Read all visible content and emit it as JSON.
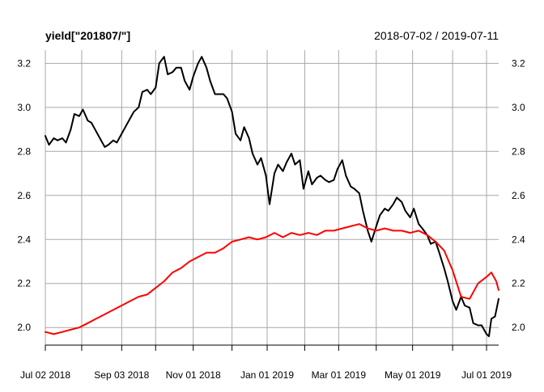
{
  "chart_data": {
    "type": "line",
    "title": "yield[\"201807/\"]",
    "date_range": "2018-07-02 / 2019-07-11",
    "xlim": [
      "2018-07-02",
      "2019-07-11"
    ],
    "ylim": [
      1.92,
      3.26
    ],
    "grid": true,
    "x_ticks": [
      {
        "date": "2018-07-02",
        "label": "Jul 02 2018"
      },
      {
        "date": "2018-08-01",
        "label": ""
      },
      {
        "date": "2018-09-03",
        "label": "Sep 03 2018"
      },
      {
        "date": "2018-10-01",
        "label": ""
      },
      {
        "date": "2018-11-01",
        "label": "Nov 01 2018"
      },
      {
        "date": "2018-12-03",
        "label": ""
      },
      {
        "date": "2019-01-01",
        "label": "Jan 01 2019"
      },
      {
        "date": "2019-02-01",
        "label": ""
      },
      {
        "date": "2019-03-01",
        "label": "Mar 01 2019"
      },
      {
        "date": "2019-04-01",
        "label": ""
      },
      {
        "date": "2019-05-01",
        "label": "May 01 2019"
      },
      {
        "date": "2019-06-03",
        "label": ""
      },
      {
        "date": "2019-07-01",
        "label": "Jul 01 2019"
      }
    ],
    "y_ticks": [
      2.0,
      2.2,
      2.4,
      2.6,
      2.8,
      3.0,
      3.2
    ],
    "y_tick_labels": [
      "2.0",
      "2.2",
      "2.4",
      "2.6",
      "2.8",
      "3.0",
      "3.2"
    ],
    "series": [
      {
        "color": "#000000",
        "points": [
          [
            "2018-07-02",
            2.87
          ],
          [
            "2018-07-05",
            2.83
          ],
          [
            "2018-07-09",
            2.86
          ],
          [
            "2018-07-12",
            2.85
          ],
          [
            "2018-07-16",
            2.86
          ],
          [
            "2018-07-19",
            2.84
          ],
          [
            "2018-07-23",
            2.9
          ],
          [
            "2018-07-26",
            2.97
          ],
          [
            "2018-07-30",
            2.96
          ],
          [
            "2018-08-02",
            2.99
          ],
          [
            "2018-08-06",
            2.94
          ],
          [
            "2018-08-09",
            2.93
          ],
          [
            "2018-08-13",
            2.89
          ],
          [
            "2018-08-16",
            2.86
          ],
          [
            "2018-08-20",
            2.82
          ],
          [
            "2018-08-23",
            2.83
          ],
          [
            "2018-08-27",
            2.85
          ],
          [
            "2018-08-30",
            2.84
          ],
          [
            "2018-09-03",
            2.88
          ],
          [
            "2018-09-06",
            2.91
          ],
          [
            "2018-09-10",
            2.95
          ],
          [
            "2018-09-13",
            2.98
          ],
          [
            "2018-09-17",
            3.0
          ],
          [
            "2018-09-20",
            3.07
          ],
          [
            "2018-09-24",
            3.08
          ],
          [
            "2018-09-27",
            3.06
          ],
          [
            "2018-10-01",
            3.09
          ],
          [
            "2018-10-04",
            3.2
          ],
          [
            "2018-10-08",
            3.23
          ],
          [
            "2018-10-11",
            3.15
          ],
          [
            "2018-10-15",
            3.16
          ],
          [
            "2018-10-18",
            3.18
          ],
          [
            "2018-10-22",
            3.18
          ],
          [
            "2018-10-25",
            3.12
          ],
          [
            "2018-10-29",
            3.08
          ],
          [
            "2018-11-01",
            3.14
          ],
          [
            "2018-11-05",
            3.2
          ],
          [
            "2018-11-08",
            3.23
          ],
          [
            "2018-11-12",
            3.18
          ],
          [
            "2018-11-15",
            3.12
          ],
          [
            "2018-11-19",
            3.06
          ],
          [
            "2018-11-22",
            3.06
          ],
          [
            "2018-11-26",
            3.06
          ],
          [
            "2018-11-29",
            3.04
          ],
          [
            "2018-12-03",
            2.98
          ],
          [
            "2018-12-06",
            2.88
          ],
          [
            "2018-12-10",
            2.85
          ],
          [
            "2018-12-13",
            2.91
          ],
          [
            "2018-12-17",
            2.86
          ],
          [
            "2018-12-20",
            2.79
          ],
          [
            "2018-12-24",
            2.74
          ],
          [
            "2018-12-27",
            2.77
          ],
          [
            "2018-12-31",
            2.69
          ],
          [
            "2019-01-03",
            2.56
          ],
          [
            "2019-01-07",
            2.7
          ],
          [
            "2019-01-10",
            2.74
          ],
          [
            "2019-01-14",
            2.71
          ],
          [
            "2019-01-17",
            2.75
          ],
          [
            "2019-01-21",
            2.79
          ],
          [
            "2019-01-24",
            2.74
          ],
          [
            "2019-01-28",
            2.76
          ],
          [
            "2019-01-31",
            2.63
          ],
          [
            "2019-02-04",
            2.71
          ],
          [
            "2019-02-07",
            2.65
          ],
          [
            "2019-02-11",
            2.68
          ],
          [
            "2019-02-14",
            2.69
          ],
          [
            "2019-02-18",
            2.67
          ],
          [
            "2019-02-21",
            2.66
          ],
          [
            "2019-02-25",
            2.67
          ],
          [
            "2019-02-28",
            2.72
          ],
          [
            "2019-03-04",
            2.76
          ],
          [
            "2019-03-07",
            2.69
          ],
          [
            "2019-03-11",
            2.64
          ],
          [
            "2019-03-14",
            2.63
          ],
          [
            "2019-03-18",
            2.61
          ],
          [
            "2019-03-21",
            2.53
          ],
          [
            "2019-03-25",
            2.44
          ],
          [
            "2019-03-28",
            2.39
          ],
          [
            "2019-04-01",
            2.46
          ],
          [
            "2019-04-04",
            2.51
          ],
          [
            "2019-04-08",
            2.54
          ],
          [
            "2019-04-11",
            2.53
          ],
          [
            "2019-04-15",
            2.56
          ],
          [
            "2019-04-18",
            2.59
          ],
          [
            "2019-04-22",
            2.57
          ],
          [
            "2019-04-25",
            2.53
          ],
          [
            "2019-04-29",
            2.5
          ],
          [
            "2019-05-02",
            2.54
          ],
          [
            "2019-05-06",
            2.47
          ],
          [
            "2019-05-09",
            2.45
          ],
          [
            "2019-05-13",
            2.42
          ],
          [
            "2019-05-16",
            2.38
          ],
          [
            "2019-05-20",
            2.39
          ],
          [
            "2019-05-23",
            2.34
          ],
          [
            "2019-05-27",
            2.27
          ],
          [
            "2019-05-30",
            2.21
          ],
          [
            "2019-06-03",
            2.12
          ],
          [
            "2019-06-06",
            2.08
          ],
          [
            "2019-06-10",
            2.14
          ],
          [
            "2019-06-13",
            2.1
          ],
          [
            "2019-06-17",
            2.09
          ],
          [
            "2019-06-20",
            2.02
          ],
          [
            "2019-06-24",
            2.01
          ],
          [
            "2019-06-27",
            2.01
          ],
          [
            "2019-07-01",
            1.97
          ],
          [
            "2019-07-03",
            1.96
          ],
          [
            "2019-07-05",
            2.04
          ],
          [
            "2019-07-08",
            2.05
          ],
          [
            "2019-07-11",
            2.13
          ]
        ]
      },
      {
        "color": "#ff0000",
        "points": [
          [
            "2018-07-02",
            1.98
          ],
          [
            "2018-07-09",
            1.97
          ],
          [
            "2018-07-16",
            1.98
          ],
          [
            "2018-07-23",
            1.99
          ],
          [
            "2018-07-30",
            2.0
          ],
          [
            "2018-08-06",
            2.02
          ],
          [
            "2018-08-13",
            2.04
          ],
          [
            "2018-08-20",
            2.06
          ],
          [
            "2018-08-27",
            2.08
          ],
          [
            "2018-09-03",
            2.1
          ],
          [
            "2018-09-10",
            2.12
          ],
          [
            "2018-09-17",
            2.14
          ],
          [
            "2018-09-24",
            2.15
          ],
          [
            "2018-10-01",
            2.18
          ],
          [
            "2018-10-08",
            2.21
          ],
          [
            "2018-10-15",
            2.25
          ],
          [
            "2018-10-22",
            2.27
          ],
          [
            "2018-10-29",
            2.3
          ],
          [
            "2018-11-05",
            2.32
          ],
          [
            "2018-11-12",
            2.34
          ],
          [
            "2018-11-19",
            2.34
          ],
          [
            "2018-11-26",
            2.36
          ],
          [
            "2018-12-03",
            2.39
          ],
          [
            "2018-12-10",
            2.4
          ],
          [
            "2018-12-17",
            2.41
          ],
          [
            "2018-12-24",
            2.4
          ],
          [
            "2018-12-31",
            2.41
          ],
          [
            "2019-01-07",
            2.43
          ],
          [
            "2019-01-14",
            2.41
          ],
          [
            "2019-01-21",
            2.43
          ],
          [
            "2019-01-28",
            2.42
          ],
          [
            "2019-02-04",
            2.43
          ],
          [
            "2019-02-11",
            2.42
          ],
          [
            "2019-02-18",
            2.44
          ],
          [
            "2019-02-25",
            2.44
          ],
          [
            "2019-03-04",
            2.45
          ],
          [
            "2019-03-11",
            2.46
          ],
          [
            "2019-03-18",
            2.47
          ],
          [
            "2019-03-25",
            2.45
          ],
          [
            "2019-04-01",
            2.44
          ],
          [
            "2019-04-08",
            2.45
          ],
          [
            "2019-04-15",
            2.44
          ],
          [
            "2019-04-22",
            2.44
          ],
          [
            "2019-04-29",
            2.43
          ],
          [
            "2019-05-06",
            2.44
          ],
          [
            "2019-05-13",
            2.42
          ],
          [
            "2019-05-20",
            2.39
          ],
          [
            "2019-05-27",
            2.35
          ],
          [
            "2019-06-03",
            2.26
          ],
          [
            "2019-06-10",
            2.14
          ],
          [
            "2019-06-17",
            2.13
          ],
          [
            "2019-06-24",
            2.2
          ],
          [
            "2019-07-01",
            2.23
          ],
          [
            "2019-07-05",
            2.25
          ],
          [
            "2019-07-09",
            2.21
          ],
          [
            "2019-07-11",
            2.17
          ]
        ]
      }
    ]
  }
}
